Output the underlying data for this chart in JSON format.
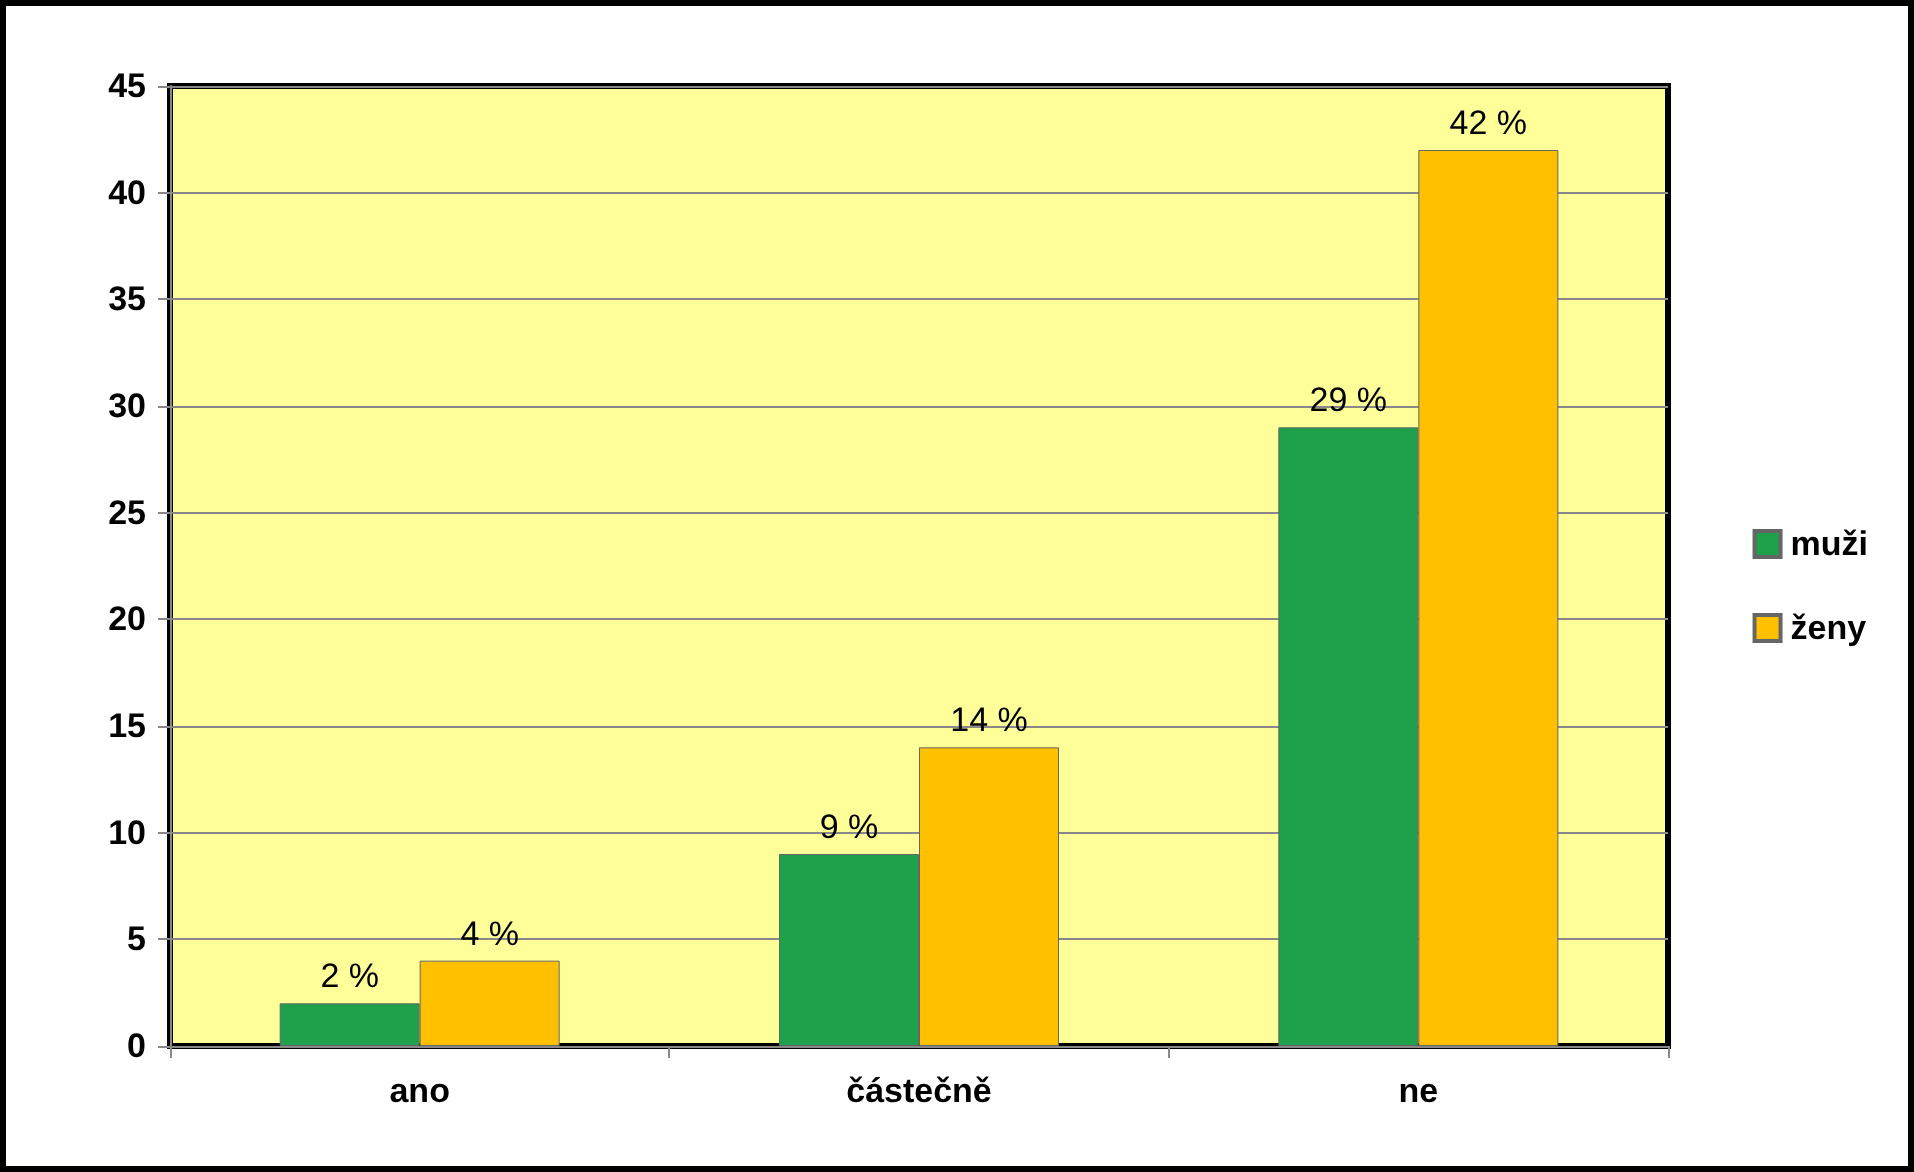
{
  "chart_data": {
    "type": "bar",
    "categories": [
      "ano",
      "částečně",
      "ne"
    ],
    "series": [
      {
        "name": "muži",
        "color": "#1fa04a",
        "values": [
          2,
          9,
          29
        ],
        "value_labels": [
          "2 %",
          "9 %",
          "29 %"
        ]
      },
      {
        "name": "ženy",
        "color": "#ffc000",
        "values": [
          4,
          14,
          42
        ],
        "value_labels": [
          "4 %",
          "14 %",
          "42 %"
        ]
      }
    ],
    "ylim": [
      0,
      45
    ],
    "yticks": [
      0,
      5,
      10,
      15,
      20,
      25,
      30,
      35,
      40,
      45
    ],
    "grid": "y",
    "legend": "right"
  }
}
